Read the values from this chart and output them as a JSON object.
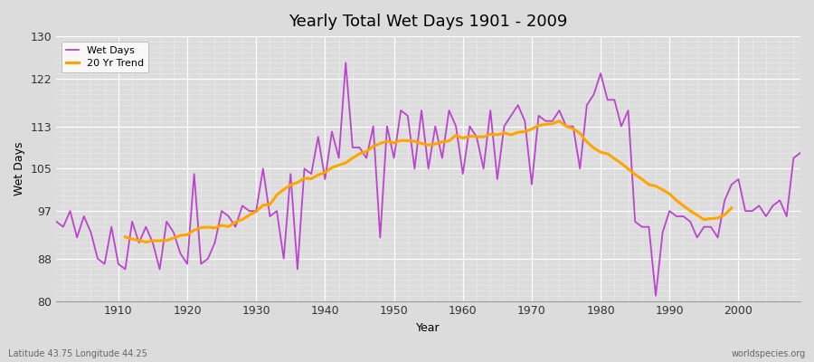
{
  "title": "Yearly Total Wet Days 1901 - 2009",
  "xlabel": "Year",
  "ylabel": "Wet Days",
  "subtitle": "Latitude 43.75 Longitude 44.25",
  "watermark": "worldspecies.org",
  "ylim": [
    80,
    130
  ],
  "yticks": [
    80,
    88,
    97,
    105,
    113,
    122,
    130
  ],
  "line_color": "#BB44CC",
  "trend_color": "#FFA500",
  "background_color": "#DCDCDC",
  "legend_labels": [
    "Wet Days",
    "20 Yr Trend"
  ],
  "years": [
    1901,
    1902,
    1903,
    1904,
    1905,
    1906,
    1907,
    1908,
    1909,
    1910,
    1911,
    1912,
    1913,
    1914,
    1915,
    1916,
    1917,
    1918,
    1919,
    1920,
    1921,
    1922,
    1923,
    1924,
    1925,
    1926,
    1927,
    1928,
    1929,
    1930,
    1931,
    1932,
    1933,
    1934,
    1935,
    1936,
    1937,
    1938,
    1939,
    1940,
    1941,
    1942,
    1943,
    1944,
    1945,
    1946,
    1947,
    1948,
    1949,
    1950,
    1951,
    1952,
    1953,
    1954,
    1955,
    1956,
    1957,
    1958,
    1959,
    1960,
    1961,
    1962,
    1963,
    1964,
    1965,
    1966,
    1967,
    1968,
    1969,
    1970,
    1971,
    1972,
    1973,
    1974,
    1975,
    1976,
    1977,
    1978,
    1979,
    1980,
    1981,
    1982,
    1983,
    1984,
    1985,
    1986,
    1987,
    1988,
    1989,
    1990,
    1991,
    1992,
    1993,
    1994,
    1995,
    1996,
    1997,
    1998,
    1999,
    2000,
    2001,
    2002,
    2003,
    2004,
    2005,
    2006,
    2007,
    2008,
    2009
  ],
  "wet_days": [
    95,
    94,
    97,
    92,
    96,
    93,
    88,
    87,
    94,
    87,
    86,
    95,
    91,
    94,
    91,
    86,
    95,
    93,
    89,
    87,
    104,
    87,
    88,
    91,
    97,
    96,
    94,
    98,
    97,
    97,
    105,
    96,
    97,
    88,
    104,
    86,
    105,
    104,
    111,
    103,
    112,
    107,
    125,
    109,
    109,
    107,
    113,
    92,
    113,
    107,
    116,
    115,
    105,
    116,
    105,
    113,
    107,
    116,
    113,
    104,
    113,
    111,
    105,
    116,
    103,
    113,
    115,
    117,
    114,
    102,
    115,
    114,
    114,
    116,
    113,
    113,
    105,
    117,
    119,
    123,
    118,
    118,
    113,
    116,
    95,
    94,
    94,
    81,
    93,
    97,
    96,
    96,
    95,
    92,
    94,
    94,
    92,
    99,
    102,
    103,
    97,
    97,
    98,
    96,
    98,
    99,
    96,
    107,
    108
  ]
}
